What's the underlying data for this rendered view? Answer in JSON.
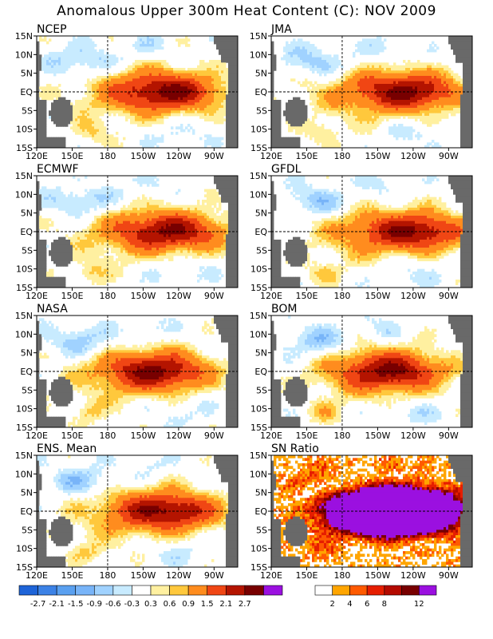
{
  "title": "Anomalous Upper 300m Heat Content (C): NOV 2009",
  "chart_data": [
    {
      "type": "heatmap",
      "title": "NCEP",
      "x_ticks": [
        "120E",
        "150E",
        "180",
        "150W",
        "120W",
        "90W"
      ],
      "y_ticks": [
        "15N",
        "10N",
        "5N",
        "EQ",
        "5S",
        "10S",
        "15S"
      ],
      "warm_core": {
        "lon": 235,
        "lat": 0,
        "max": 2.4
      },
      "color_scale": "anomaly"
    },
    {
      "type": "heatmap",
      "title": "JMA",
      "x_ticks": [
        "120E",
        "150E",
        "180",
        "150W",
        "120W",
        "90W"
      ],
      "y_ticks": [
        "15N",
        "10N",
        "5N",
        "EQ",
        "5S",
        "10S",
        "15S"
      ],
      "warm_core": {
        "lon": 240,
        "lat": 0,
        "max": 2.4
      },
      "color_scale": "anomaly"
    },
    {
      "type": "heatmap",
      "title": "ECMWF",
      "x_ticks": [
        "120E",
        "150E",
        "180",
        "150W",
        "120W",
        "90W"
      ],
      "y_ticks": [
        "15N",
        "10N",
        "5N",
        "EQ",
        "5S",
        "10S",
        "15S"
      ],
      "warm_core": {
        "lon": 238,
        "lat": 0,
        "max": 2.3
      },
      "color_scale": "anomaly"
    },
    {
      "type": "heatmap",
      "title": "GFDL",
      "x_ticks": [
        "120E",
        "150E",
        "180",
        "150W",
        "120W",
        "90W"
      ],
      "y_ticks": [
        "15N",
        "10N",
        "5N",
        "EQ",
        "5S",
        "10S",
        "15S"
      ],
      "warm_core": {
        "lon": 245,
        "lat": 0,
        "max": 2.4
      },
      "color_scale": "anomaly"
    },
    {
      "type": "heatmap",
      "title": "NASA",
      "x_ticks": [
        "120E",
        "150E",
        "180",
        "150W",
        "120W",
        "90W"
      ],
      "y_ticks": [
        "15N",
        "10N",
        "5N",
        "EQ",
        "5S",
        "10S",
        "15S"
      ],
      "warm_core": {
        "lon": 225,
        "lat": 0,
        "max": 2.2
      },
      "color_scale": "anomaly"
    },
    {
      "type": "heatmap",
      "title": "BOM",
      "x_ticks": [
        "120E",
        "150E",
        "180",
        "150W",
        "120W",
        "90W"
      ],
      "y_ticks": [
        "15N",
        "10N",
        "5N",
        "EQ",
        "5S",
        "10S",
        "15S"
      ],
      "warm_core": {
        "lon": 225,
        "lat": 0,
        "max": 2.2
      },
      "color_scale": "anomaly"
    },
    {
      "type": "heatmap",
      "title": "ENS. Mean",
      "x_ticks": [
        "120E",
        "150E",
        "180",
        "150W",
        "120W",
        "90W"
      ],
      "y_ticks": [
        "15N",
        "10N",
        "5N",
        "EQ",
        "5S",
        "10S",
        "15S"
      ],
      "warm_core": {
        "lon": 235,
        "lat": 0,
        "max": 2.3
      },
      "color_scale": "anomaly"
    },
    {
      "type": "heatmap",
      "title": "SN Ratio",
      "x_ticks": [
        "120E",
        "150E",
        "180",
        "150W",
        "120W",
        "90W"
      ],
      "y_ticks": [
        "15N",
        "10N",
        "5N",
        "EQ",
        "5S",
        "10S",
        "15S"
      ],
      "warm_core": {
        "lon": 225,
        "lat": 0,
        "max": 14
      },
      "color_scale": "snr"
    }
  ],
  "colorbars": {
    "anomaly": {
      "labels": [
        "-2.7",
        "-2.1",
        "-1.5",
        "-0.9",
        "-0.6",
        "-0.3",
        "0.3",
        "0.6",
        "0.9",
        "1.5",
        "2.1",
        "2.7"
      ],
      "colors": [
        "#1e64d8",
        "#3c82e6",
        "#5aa0f0",
        "#78b4f8",
        "#a0d2ff",
        "#c8ebff",
        "#ffffff",
        "#fff0a0",
        "#ffc83c",
        "#ff8c1e",
        "#f04614",
        "#b41400",
        "#780000",
        "#9b10e0"
      ]
    },
    "snr": {
      "labels": [
        "2",
        "4",
        "6",
        "8",
        "12"
      ],
      "colors": [
        "#ffffff",
        "#ffa500",
        "#ff5a00",
        "#e61e00",
        "#b40a00",
        "#780000",
        "#9b10e0"
      ]
    }
  },
  "land_color": "#696969"
}
